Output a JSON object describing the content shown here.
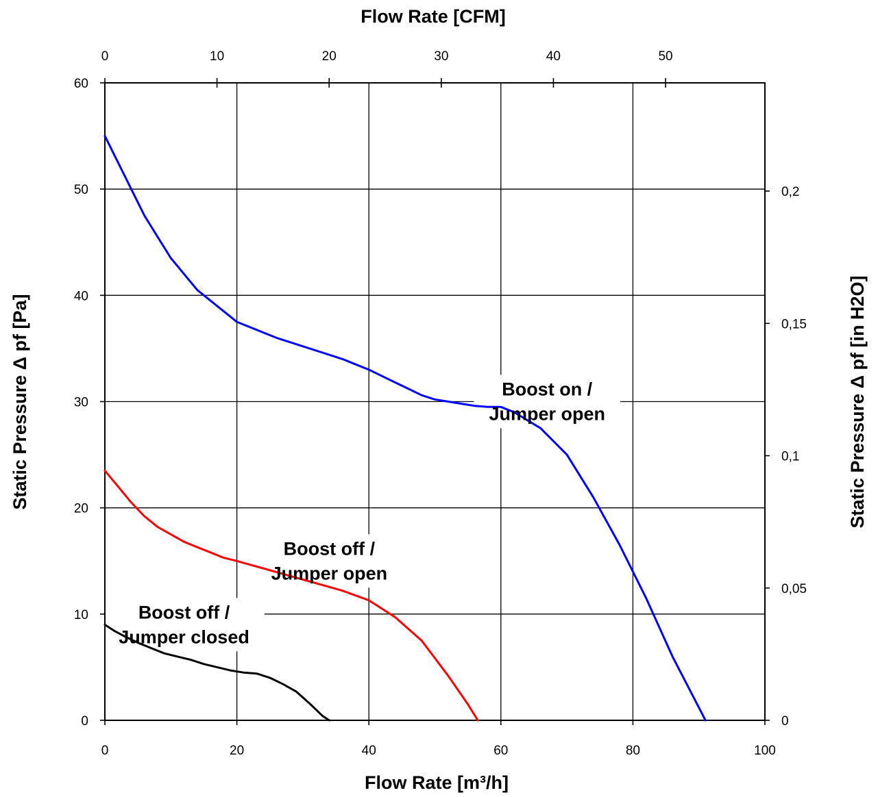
{
  "chart_data": {
    "type": "line",
    "xlabel": "Flow Rate [m³/h]",
    "x2label": "Flow Rate [CFM]",
    "ylabel": "Static Pressure Δ pf [Pa]",
    "y2label": "Static Pressure Δ pf [in H2O]",
    "xlim": [
      0,
      100
    ],
    "ylim": [
      0,
      60
    ],
    "x2lim": [
      0,
      58.86
    ],
    "y2lim": [
      0,
      0.2409
    ],
    "grid": true,
    "x_ticks": [
      "0",
      "20",
      "40",
      "60",
      "80",
      "100"
    ],
    "y_ticks": [
      "0",
      "10",
      "20",
      "30",
      "40",
      "50",
      "60"
    ],
    "x2_ticks": [
      "0",
      "10",
      "20",
      "30",
      "40",
      "50"
    ],
    "y2_ticks": [
      "0",
      "0,05",
      "0,1",
      "0,15",
      "0,2"
    ],
    "series": [
      {
        "color": "#0000ff",
        "x": [
          0,
          2,
          4,
          6,
          8,
          10,
          12,
          14,
          16,
          18,
          20,
          22,
          24,
          26,
          28,
          30,
          32,
          34,
          36,
          38,
          40,
          42,
          44,
          46,
          48,
          50,
          52,
          54,
          56,
          58,
          60,
          62,
          66,
          70,
          74,
          78,
          82,
          86,
          91
        ],
        "values": [
          55,
          52.5,
          50,
          47.5,
          45.5,
          43.5,
          42,
          40.5,
          39.5,
          38.5,
          37.5,
          37,
          36.5,
          36,
          35.6,
          35.2,
          34.8,
          34.4,
          34,
          33.5,
          33,
          32.4,
          31.8,
          31.2,
          30.6,
          30.2,
          30,
          29.8,
          29.6,
          29.5,
          29.5,
          29,
          27.5,
          25,
          21,
          16.5,
          11.5,
          6,
          0
        ]
      },
      {
        "color": "#ff0000",
        "x": [
          0,
          2,
          4,
          6,
          8,
          10,
          12,
          14,
          16,
          18,
          20,
          24,
          28,
          32,
          36,
          40,
          44,
          48,
          52,
          55,
          56.5
        ],
        "values": [
          23.5,
          22,
          20.5,
          19.2,
          18.2,
          17.5,
          16.8,
          16.3,
          15.8,
          15.3,
          15,
          14.3,
          13.6,
          12.9,
          12.2,
          11.3,
          9.7,
          7.5,
          4.2,
          1.5,
          0
        ]
      },
      {
        "color": "#000000",
        "x": [
          0,
          1.5,
          3,
          5,
          7,
          9,
          11,
          13,
          15,
          17,
          19,
          21,
          23,
          25,
          27,
          29,
          31,
          33,
          34
        ],
        "values": [
          9,
          8.4,
          7.9,
          7.3,
          6.8,
          6.3,
          6,
          5.7,
          5.3,
          5,
          4.7,
          4.5,
          4.4,
          4,
          3.4,
          2.7,
          1.6,
          0.4,
          0
        ]
      }
    ],
    "annotations": [
      {
        "lines": [
          "Boost on /",
          "Jumper open"
        ],
        "x": 67,
        "y": 30
      },
      {
        "lines": [
          "Boost off /",
          "Jumper open"
        ],
        "x": 34,
        "y": 15
      },
      {
        "lines": [
          "Boost off /",
          "Jumper closed"
        ],
        "x": 12,
        "y": 9
      }
    ]
  }
}
